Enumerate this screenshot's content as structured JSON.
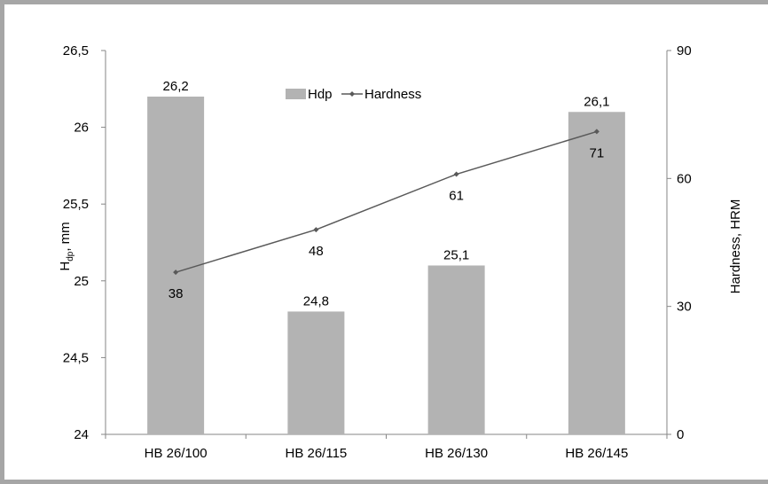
{
  "chart_data": {
    "type": "bar",
    "categories": [
      "HB 26/100",
      "HB 26/115",
      "HB 26/130",
      "HB 26/145"
    ],
    "series": [
      {
        "name": "Hdp",
        "type": "bar",
        "axis": "left",
        "values": [
          26.2,
          24.8,
          25.1,
          26.1
        ],
        "labels": [
          "26,2",
          "24,8",
          "25,1",
          "26,1"
        ],
        "color": "#b3b3b3"
      },
      {
        "name": "Hardness",
        "type": "line",
        "axis": "right",
        "values": [
          38,
          48,
          61,
          71
        ],
        "labels": [
          "38",
          "48",
          "61",
          "71"
        ],
        "color": "#595959"
      }
    ],
    "y_left": {
      "label_main": "H",
      "label_sub": "dp",
      "label_rest": ", mm",
      "lim": [
        24,
        26.5
      ],
      "ticks": [
        24,
        24.5,
        25,
        25.5,
        26,
        26.5
      ],
      "tick_labels": [
        "24",
        "24,5",
        "25",
        "25,5",
        "26",
        "26,5"
      ]
    },
    "y_right": {
      "label": "Hardness, HRM",
      "lim": [
        0,
        90
      ],
      "ticks": [
        0,
        30,
        60,
        90
      ],
      "tick_labels": [
        "0",
        "30",
        "60",
        "90"
      ]
    },
    "grid": false,
    "legend": {
      "placement": "top-center",
      "entries": [
        "Hdp",
        "Hardness"
      ]
    }
  }
}
